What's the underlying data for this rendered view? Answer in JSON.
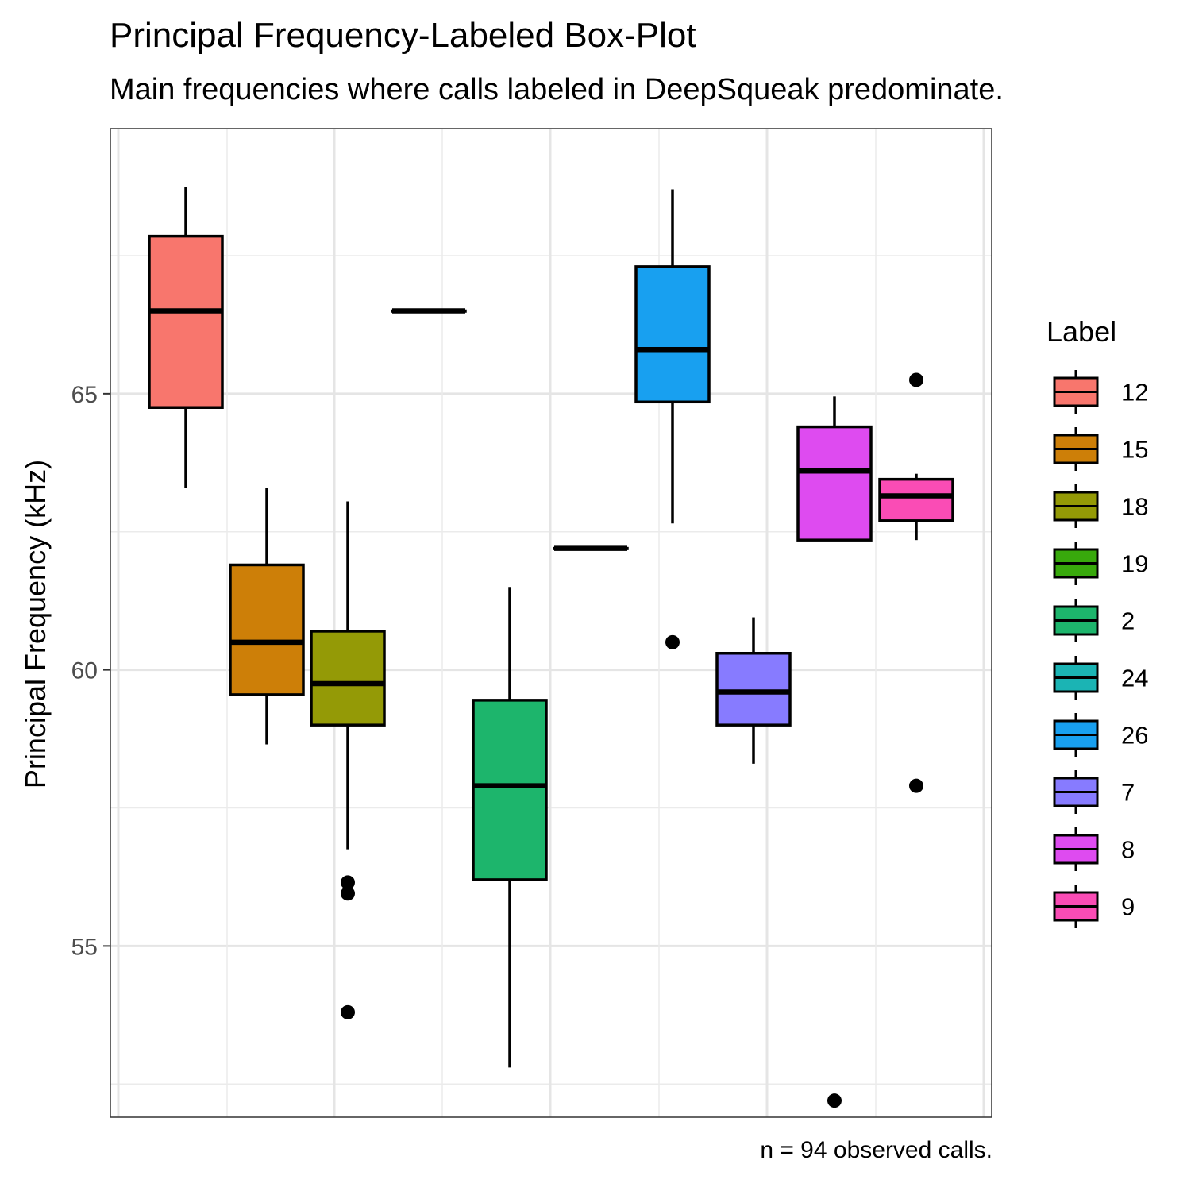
{
  "chart_data": {
    "type": "box",
    "title": "Principal Frequency-Labeled Box-Plot",
    "subtitle": "Main frequencies where calls labeled in DeepSqueak predominate.",
    "caption": "n = 94 observed calls.",
    "ylabel": "Principal Frequency (kHz)",
    "xlabel": "",
    "ylim": [
      51.9,
      69.8
    ],
    "yticks": [
      55,
      60,
      65
    ],
    "grid": true,
    "legend_title": "Label",
    "legend_position": "right",
    "series": [
      {
        "label": "12",
        "color": "#F8766D",
        "whisker_low": 63.3,
        "q1": 64.75,
        "median": 66.5,
        "q3": 67.85,
        "whisker_high": 68.75,
        "outliers": []
      },
      {
        "label": "15",
        "color": "#CD7F08",
        "whisker_low": 58.65,
        "q1": 59.55,
        "median": 60.5,
        "q3": 61.9,
        "whisker_high": 63.3,
        "outliers": []
      },
      {
        "label": "18",
        "color": "#949A06",
        "whisker_low": 56.75,
        "q1": 59.0,
        "median": 59.75,
        "q3": 60.7,
        "whisker_high": 63.05,
        "outliers": [
          56.15,
          55.95,
          53.8
        ]
      },
      {
        "label": "19",
        "color": "#38A90C",
        "whisker_low": 66.5,
        "q1": 66.5,
        "median": 66.5,
        "q3": 66.5,
        "whisker_high": 66.5,
        "outliers": []
      },
      {
        "label": "2",
        "color": "#1DB56C",
        "whisker_low": 52.8,
        "q1": 56.2,
        "median": 57.9,
        "q3": 59.45,
        "whisker_high": 61.5,
        "outliers": []
      },
      {
        "label": "24",
        "color": "#1BB4B4",
        "whisker_low": 62.2,
        "q1": 62.2,
        "median": 62.2,
        "q3": 62.2,
        "whisker_high": 62.2,
        "outliers": []
      },
      {
        "label": "26",
        "color": "#18A0F0",
        "whisker_low": 62.65,
        "q1": 64.85,
        "median": 65.8,
        "q3": 67.3,
        "whisker_high": 68.7,
        "outliers": [
          60.5
        ]
      },
      {
        "label": "7",
        "color": "#877BFF",
        "whisker_low": 58.3,
        "q1": 59.0,
        "median": 59.6,
        "q3": 60.3,
        "whisker_high": 60.95,
        "outliers": []
      },
      {
        "label": "8",
        "color": "#DE4BF0",
        "whisker_low": null,
        "q1": 62.35,
        "median": 63.6,
        "q3": 64.4,
        "whisker_high": 64.95,
        "outliers": [
          52.2
        ]
      },
      {
        "label": "9",
        "color": "#FA4CB5",
        "whisker_low": 62.35,
        "q1": 62.7,
        "median": 63.15,
        "q3": 63.45,
        "whisker_high": 63.55,
        "outliers": [
          65.25,
          57.9
        ]
      }
    ]
  }
}
